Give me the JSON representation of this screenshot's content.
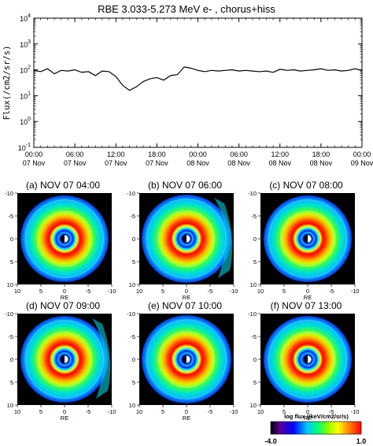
{
  "title": "RBE 3.033-5.273 MeV e- , chorus+hiss",
  "top_chart": {
    "ylabel": "Flux(/cm2/sr/s)",
    "y_ticks": [
      {
        "base": "10",
        "exp": "4",
        "value": 4
      },
      {
        "base": "10",
        "exp": "3",
        "value": 3
      },
      {
        "base": "10",
        "exp": "2",
        "value": 2
      },
      {
        "base": "10",
        "exp": "1",
        "value": 1
      },
      {
        "base": "10",
        "exp": "0",
        "value": 0
      },
      {
        "base": "10",
        "exp": "-1",
        "value": -1
      }
    ],
    "x_ticks": [
      {
        "h": 0,
        "time": "00:00",
        "date": "07 Nov"
      },
      {
        "h": 6,
        "time": "06:00",
        "date": "07 Nov"
      },
      {
        "h": 12,
        "time": "12:00",
        "date": "07 Nov"
      },
      {
        "h": 18,
        "time": "18:00",
        "date": "07 Nov"
      },
      {
        "h": 24,
        "time": "00:00",
        "date": "08 Nov"
      },
      {
        "h": 30,
        "time": "06:00",
        "date": "08 Nov"
      },
      {
        "h": 36,
        "time": "12:00",
        "date": "08 Nov"
      },
      {
        "h": 42,
        "time": "18:00",
        "date": "08 Nov"
      },
      {
        "h": 48,
        "time": "00:00",
        "date": "09 Nov"
      }
    ]
  },
  "chart_data": {
    "type": "line",
    "x_unit": "hours from 00:00 07 Nov",
    "yscale": "log",
    "ylim": [
      0.1,
      10000
    ],
    "xlim": [
      0,
      48
    ],
    "grid": false,
    "x": [
      0,
      1,
      2,
      3,
      4,
      5,
      6,
      7,
      8,
      9,
      10,
      11,
      12,
      13,
      14,
      15,
      16,
      17,
      18,
      19,
      20,
      21,
      22,
      23,
      24,
      25,
      26,
      27,
      28,
      29,
      30,
      31,
      32,
      33,
      34,
      35,
      36,
      37,
      38,
      39,
      40,
      41,
      42,
      43,
      44,
      45,
      46,
      47,
      48
    ],
    "series": [
      {
        "values": [
          95,
          85,
          110,
          70,
          95,
          90,
          100,
          80,
          85,
          60,
          90,
          85,
          55,
          25,
          16,
          22,
          35,
          45,
          50,
          40,
          60,
          65,
          130,
          115,
          95,
          85,
          95,
          90,
          95,
          100,
          90,
          95,
          90,
          85,
          90,
          80,
          105,
          95,
          100,
          90,
          95,
          100,
          110,
          95,
          100,
          90,
          95,
          110,
          95
        ]
      }
    ]
  },
  "panels": [
    {
      "label": "(a) NOV 07 04:00",
      "image": "dial-map-a"
    },
    {
      "label": "(b) NOV 07 06:00",
      "image": "dial-map-b"
    },
    {
      "label": "(c) NOV 07 08:00",
      "image": "dial-map-c"
    },
    {
      "label": "(d) NOV 07 09:00",
      "image": "dial-map-d"
    },
    {
      "label": "(e) NOV 07 10:00",
      "image": "dial-map-e"
    },
    {
      "label": "(f) NOV  07 13:00",
      "image": "dial-map-f"
    }
  ],
  "panel_axes": {
    "xlabel": "RE",
    "x_ticks": [
      "10",
      "5",
      "0",
      "-5",
      "-10"
    ],
    "y_ticks": [
      "-10",
      "-5",
      "0",
      "5",
      "10"
    ]
  },
  "colorbar": {
    "label": "log flux (/keV/cm2/sr/s)",
    "min_label": "-4.0",
    "max_label": "1.0",
    "min": -4.0,
    "max": 1.0,
    "colors": [
      "#000000",
      "#5a009a",
      "#0000ff",
      "#00c8ff",
      "#00ff80",
      "#80ff00",
      "#ffff00",
      "#ff8000",
      "#ff0000"
    ]
  }
}
